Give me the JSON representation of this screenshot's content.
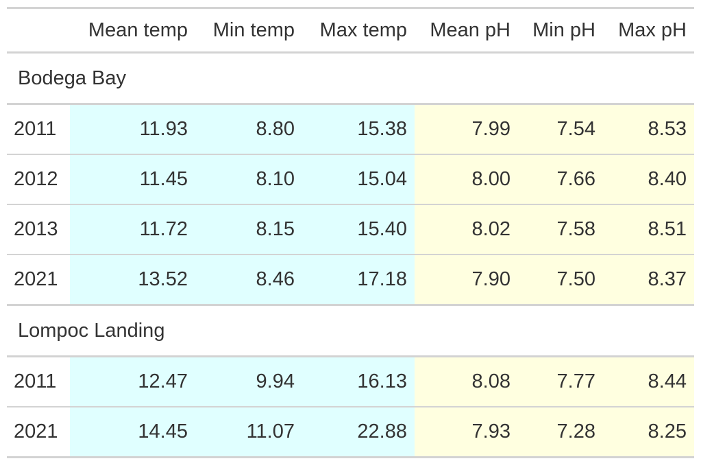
{
  "colors": {
    "temp_fill": "#e0ffff",
    "ph_fill": "#ffffe0",
    "rule": "#d3d3d3",
    "text": "#333333"
  },
  "columns": [
    "",
    "Mean temp",
    "Min temp",
    "Max temp",
    "Mean pH",
    "Min pH",
    "Max pH"
  ],
  "groups": [
    {
      "name": "Bodega Bay",
      "rows": [
        {
          "year": "2011",
          "values": [
            "11.93",
            "8.80",
            "15.38",
            "7.99",
            "7.54",
            "8.53"
          ]
        },
        {
          "year": "2012",
          "values": [
            "11.45",
            "8.10",
            "15.04",
            "8.00",
            "7.66",
            "8.40"
          ]
        },
        {
          "year": "2013",
          "values": [
            "11.72",
            "8.15",
            "15.40",
            "8.02",
            "7.58",
            "8.51"
          ]
        },
        {
          "year": "2021",
          "values": [
            "13.52",
            "8.46",
            "17.18",
            "7.90",
            "7.50",
            "8.37"
          ]
        }
      ]
    },
    {
      "name": "Lompoc Landing",
      "rows": [
        {
          "year": "2011",
          "values": [
            "12.47",
            "9.94",
            "16.13",
            "8.08",
            "7.77",
            "8.44"
          ]
        },
        {
          "year": "2021",
          "values": [
            "14.45",
            "11.07",
            "22.88",
            "7.93",
            "7.28",
            "8.25"
          ]
        }
      ]
    }
  ]
}
